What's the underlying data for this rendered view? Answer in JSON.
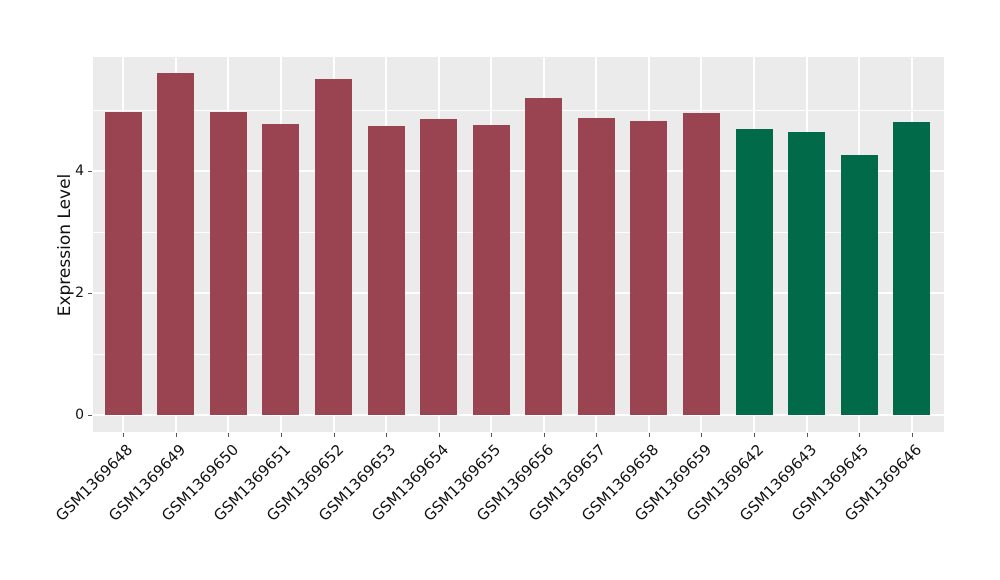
{
  "chart_data": {
    "type": "bar",
    "title": "",
    "xlabel": "",
    "ylabel": "Expression Level",
    "categories": [
      "GSM1369648",
      "GSM1369649",
      "GSM1369650",
      "GSM1369651",
      "GSM1369652",
      "GSM1369653",
      "GSM1369654",
      "GSM1369655",
      "GSM1369656",
      "GSM1369657",
      "GSM1369658",
      "GSM1369659",
      "GSM1369642",
      "GSM1369643",
      "GSM1369645",
      "GSM1369646"
    ],
    "values": [
      4.97,
      5.61,
      4.97,
      4.77,
      5.51,
      4.74,
      4.85,
      4.75,
      5.2,
      4.87,
      4.82,
      4.95,
      4.69,
      4.64,
      4.26,
      4.8
    ],
    "bar_colors": [
      "#9A4452",
      "#9A4452",
      "#9A4452",
      "#9A4452",
      "#9A4452",
      "#9A4452",
      "#9A4452",
      "#9A4452",
      "#9A4452",
      "#9A4452",
      "#9A4452",
      "#9A4452",
      "#006A49",
      "#006A49",
      "#006A49",
      "#006A49"
    ],
    "group_colors": {
      "group_1": "#9A4452",
      "group_2": "#006A49"
    },
    "yticks": [
      0,
      2,
      4
    ],
    "minor_yticks": [
      1,
      3,
      5
    ],
    "ylim": [
      -0.29,
      5.87
    ],
    "grid": "on",
    "legend": "none",
    "panel_bg": "#EBEBEB",
    "grid_color": "#FFFFFF"
  }
}
